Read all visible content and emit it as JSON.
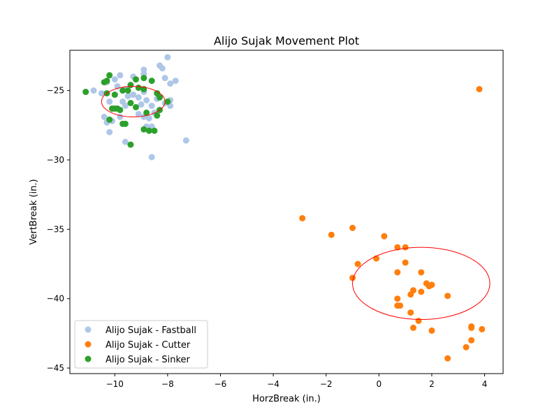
{
  "chart_data": {
    "type": "scatter",
    "title": "Alijo Sujak Movement Plot",
    "xlabel": "HorzBreak (in.)",
    "ylabel": "VertBreak (in.)",
    "xlim": [
      -11.7,
      4.7
    ],
    "ylim": [
      -45.4,
      -22.1
    ],
    "xticks": [
      -10,
      -8,
      -6,
      -4,
      -2,
      0,
      2,
      4
    ],
    "yticks": [
      -45,
      -40,
      -35,
      -30,
      -25
    ],
    "xtick_labels": [
      "−10",
      "−8",
      "−6",
      "−4",
      "−2",
      "0",
      "2",
      "4"
    ],
    "ytick_labels": [
      "−45",
      "−40",
      "−35",
      "−30",
      "−25"
    ],
    "legend_position": "lower-left",
    "grid": false,
    "series": [
      {
        "name": "Alijo Sujak - Fastball",
        "color": "#aec7e8",
        "points": [
          [
            -8.0,
            -22.6
          ],
          [
            -8.3,
            -23.2
          ],
          [
            -8.2,
            -23.4
          ],
          [
            -8.9,
            -23.5
          ],
          [
            -9.8,
            -23.9
          ],
          [
            -10.0,
            -24.2
          ],
          [
            -8.1,
            -24.1
          ],
          [
            -7.7,
            -24.3
          ],
          [
            -7.9,
            -24.5
          ],
          [
            -9.3,
            -24.0
          ],
          [
            -8.9,
            -23.8
          ],
          [
            -10.3,
            -24.4
          ],
          [
            -9.9,
            -24.7
          ],
          [
            -9.6,
            -24.9
          ],
          [
            -10.8,
            -25.0
          ],
          [
            -10.5,
            -25.2
          ],
          [
            -10.0,
            -25.3
          ],
          [
            -9.5,
            -25.4
          ],
          [
            -9.1,
            -25.5
          ],
          [
            -8.8,
            -25.7
          ],
          [
            -8.4,
            -25.6
          ],
          [
            -7.9,
            -25.7
          ],
          [
            -8.1,
            -25.9
          ],
          [
            -10.2,
            -25.8
          ],
          [
            -9.7,
            -25.8
          ],
          [
            -9.0,
            -26.0
          ],
          [
            -8.6,
            -26.1
          ],
          [
            -7.9,
            -26.1
          ],
          [
            -10.1,
            -26.3
          ],
          [
            -9.6,
            -26.1
          ],
          [
            -8.3,
            -26.4
          ],
          [
            -8.5,
            -26.6
          ],
          [
            -9.1,
            -26.7
          ],
          [
            -10.4,
            -26.9
          ],
          [
            -9.8,
            -26.9
          ],
          [
            -8.9,
            -26.9
          ],
          [
            -8.7,
            -27.0
          ],
          [
            -10.3,
            -27.3
          ],
          [
            -10.1,
            -27.2
          ],
          [
            -8.8,
            -27.6
          ],
          [
            -8.6,
            -27.6
          ],
          [
            -10.2,
            -28.0
          ],
          [
            -9.6,
            -28.7
          ],
          [
            -7.3,
            -28.6
          ],
          [
            -8.6,
            -29.8
          ],
          [
            -9.3,
            -25.3
          ],
          [
            -8.9,
            -25.1
          ]
        ]
      },
      {
        "name": "Alijo Sujak - Cutter",
        "color": "#ff7f0e",
        "points": [
          [
            3.8,
            -24.9
          ],
          [
            -2.9,
            -34.2
          ],
          [
            -1.8,
            -35.4
          ],
          [
            -1.0,
            -34.9
          ],
          [
            0.2,
            -35.5
          ],
          [
            0.7,
            -36.3
          ],
          [
            1.0,
            -36.3
          ],
          [
            -0.1,
            -37.1
          ],
          [
            -0.8,
            -37.5
          ],
          [
            1.0,
            -37.4
          ],
          [
            0.7,
            -38.1
          ],
          [
            1.6,
            -38.1
          ],
          [
            -1.0,
            -38.5
          ],
          [
            1.8,
            -38.9
          ],
          [
            1.9,
            -39.1
          ],
          [
            2.0,
            -39.0
          ],
          [
            1.3,
            -39.4
          ],
          [
            1.6,
            -39.5
          ],
          [
            1.2,
            -39.7
          ],
          [
            2.6,
            -39.8
          ],
          [
            0.7,
            -40.0
          ],
          [
            0.7,
            -40.5
          ],
          [
            0.8,
            -40.5
          ],
          [
            1.2,
            -41.0
          ],
          [
            1.5,
            -41.6
          ],
          [
            1.3,
            -42.1
          ],
          [
            2.0,
            -42.3
          ],
          [
            3.5,
            -42.0
          ],
          [
            3.5,
            -42.1
          ],
          [
            3.9,
            -42.2
          ],
          [
            3.5,
            -43.0
          ],
          [
            3.3,
            -43.5
          ],
          [
            2.6,
            -44.3
          ]
        ]
      },
      {
        "name": "Alijo Sujak - Sinker",
        "color": "#2ca02c",
        "points": [
          [
            -10.2,
            -23.9
          ],
          [
            -10.3,
            -24.3
          ],
          [
            -10.4,
            -24.4
          ],
          [
            -9.2,
            -24.2
          ],
          [
            -8.9,
            -24.1
          ],
          [
            -8.6,
            -24.3
          ],
          [
            -9.4,
            -24.6
          ],
          [
            -9.1,
            -24.8
          ],
          [
            -8.9,
            -24.9
          ],
          [
            -9.7,
            -25.0
          ],
          [
            -9.5,
            -25.0
          ],
          [
            -11.1,
            -25.1
          ],
          [
            -10.3,
            -25.2
          ],
          [
            -10.0,
            -25.3
          ],
          [
            -8.4,
            -25.2
          ],
          [
            -8.3,
            -25.5
          ],
          [
            -8.0,
            -25.8
          ],
          [
            -9.4,
            -25.9
          ],
          [
            -9.2,
            -26.2
          ],
          [
            -10.1,
            -26.3
          ],
          [
            -10.0,
            -26.3
          ],
          [
            -9.9,
            -26.3
          ],
          [
            -9.8,
            -26.4
          ],
          [
            -8.3,
            -26.4
          ],
          [
            -8.8,
            -26.6
          ],
          [
            -8.4,
            -26.8
          ],
          [
            -10.2,
            -27.1
          ],
          [
            -9.7,
            -27.4
          ],
          [
            -9.6,
            -27.4
          ],
          [
            -8.9,
            -27.8
          ],
          [
            -8.7,
            -27.9
          ],
          [
            -8.5,
            -27.9
          ],
          [
            -9.4,
            -28.9
          ]
        ]
      }
    ],
    "ellipses": [
      {
        "color": "#ff0000",
        "center": [
          -9.3,
          -25.8
        ],
        "radius_x": 1.2,
        "radius_y": 1.1
      },
      {
        "color": "#ff0000",
        "center": [
          1.6,
          -38.9
        ],
        "radius_x": 2.6,
        "radius_y": 2.6
      }
    ]
  }
}
